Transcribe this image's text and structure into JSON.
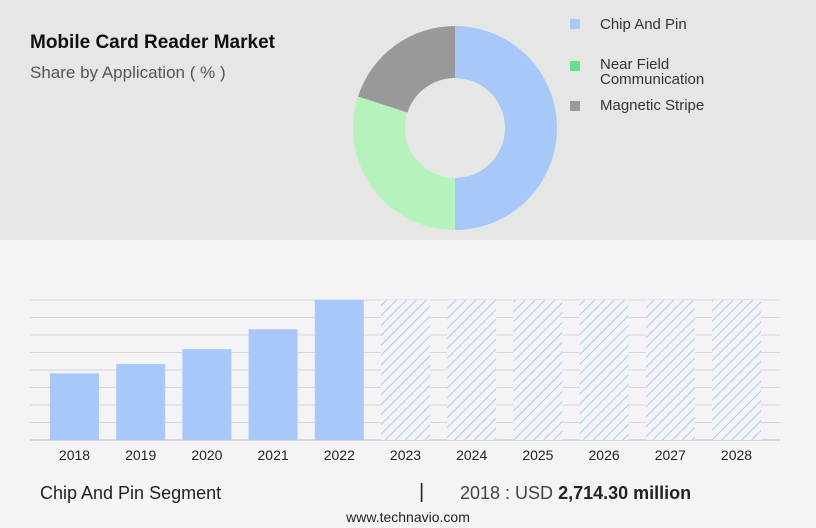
{
  "header": {
    "title": "Mobile Card Reader Market",
    "subtitle": "Share by Application ( % )"
  },
  "legend": [
    {
      "label": "Chip And Pin",
      "color": "#a8c8fa"
    },
    {
      "label": "Near Field Communication",
      "color": "#66e08a"
    },
    {
      "label": "Magnetic Stripe",
      "color": "#999999"
    }
  ],
  "chart_data": [
    {
      "type": "pie",
      "title": "Share by Application ( % )",
      "categories": [
        "Chip And Pin",
        "Near Field Communication",
        "Magnetic Stripe"
      ],
      "values": [
        50,
        30,
        20
      ],
      "colors": [
        "#a8c8fa",
        "#b6f2bc",
        "#999999"
      ],
      "donut": true
    },
    {
      "type": "bar",
      "categories": [
        "2018",
        "2019",
        "2020",
        "2021",
        "2022",
        "2023",
        "2024",
        "2025",
        "2026",
        "2027",
        "2028"
      ],
      "values": [
        2714.3,
        3090,
        3700,
        4510,
        5700,
        null,
        null,
        null,
        null,
        null,
        null
      ],
      "forecast_categories": [
        "2023",
        "2024",
        "2025",
        "2026",
        "2027",
        "2028"
      ],
      "ylim": [
        0,
        5700
      ],
      "grid": true,
      "color": "#a8c8fa"
    }
  ],
  "footer": {
    "segment": "Chip And Pin Segment",
    "divider": "|",
    "value_prefix": "2018 : USD",
    "value": "2,714.30 million",
    "site": "www.technavio.com"
  }
}
